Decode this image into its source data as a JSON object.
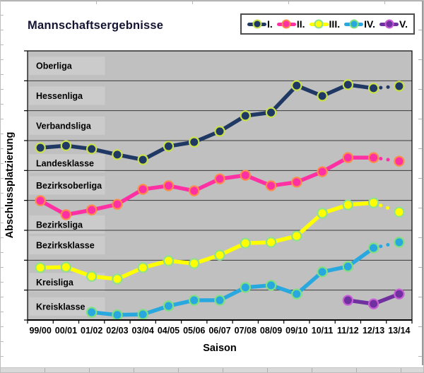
{
  "page": {
    "title": "Mannschaftsergebnisse",
    "x_axis_title": "Saison",
    "y_axis_title": "Abschlussplatzierung"
  },
  "legend": {
    "position": "top-right",
    "entries": [
      {
        "label": "I.",
        "color": "#1F3864",
        "marker_outline": "#C9E04B"
      },
      {
        "label": "II.",
        "color": "#FF2FA4",
        "marker_outline": "#FF8A4A"
      },
      {
        "label": "III.",
        "color": "#FFFF00",
        "marker_outline": "#8FE08F"
      },
      {
        "label": "IV.",
        "color": "#29A8E0",
        "marker_outline": "#7EE07E"
      },
      {
        "label": "V.",
        "color": "#7030A0",
        "marker_outline": "#C95FD6"
      }
    ]
  },
  "chart_data": {
    "type": "line",
    "title": "Mannschaftsergebnisse",
    "xlabel": "Saison",
    "ylabel": "Abschlussplatzierung",
    "categories": [
      "99/00",
      "00/01",
      "01/02",
      "02/03",
      "03/04",
      "04/05",
      "05/06",
      "06/07",
      "07/08",
      "08/09",
      "09/10",
      "10/11",
      "11/12",
      "12/13",
      "13/14"
    ],
    "league_bands": [
      "Oberliga",
      "Hessenliga",
      "Verbandsliga",
      "Landesklasse",
      "Bezirksoberliga",
      "Bezirksliga",
      "Bezirksklasse",
      "Kreisliga",
      "Kreisklasse"
    ],
    "values_unit": "league position from top: value v lies in band number floor(v)+1 (0 = top of Oberliga, 9 = bottom of Kreisklasse); lower = better placement",
    "plot_bg": "#C0C0C0",
    "grid": true,
    "grid_color": "#3a3a3a",
    "legend_position": "top-right",
    "series": [
      {
        "name": "I.",
        "color": "#1F3864",
        "marker_outline": "#C9E04B",
        "start_index": 0,
        "values": [
          3.24,
          3.17,
          3.28,
          3.47,
          3.64,
          3.19,
          3.05,
          2.69,
          2.17,
          2.06,
          1.16,
          1.51,
          1.13,
          1.25,
          1.18
        ],
        "dotted_last_segment": true
      },
      {
        "name": "II.",
        "color": "#FF2FA4",
        "marker_outline": "#FF8A4A",
        "start_index": 0,
        "values": [
          5.01,
          5.48,
          5.32,
          5.13,
          4.63,
          4.51,
          4.68,
          4.28,
          4.16,
          4.51,
          4.39,
          4.04,
          3.57,
          3.57,
          3.69
        ],
        "dotted_last_segment": true
      },
      {
        "name": "III.",
        "color": "#FFFF00",
        "marker_outline": "#8FE08F",
        "start_index": 0,
        "values": [
          7.25,
          7.23,
          7.54,
          7.63,
          7.25,
          7.02,
          7.11,
          6.83,
          6.43,
          6.4,
          6.19,
          5.43,
          5.15,
          5.08,
          5.39
        ],
        "dotted_last_segment": true
      },
      {
        "name": "IV.",
        "color": "#29A8E0",
        "marker_outline": "#7EE07E",
        "start_index": 2,
        "values": [
          8.74,
          8.83,
          8.81,
          8.53,
          8.34,
          8.34,
          7.91,
          7.84,
          8.13,
          7.39,
          7.21,
          6.59,
          6.4
        ],
        "dotted_last_segment": true
      },
      {
        "name": "V.",
        "color": "#7030A0",
        "marker_outline": "#C95FD6",
        "start_index": 12,
        "values": [
          8.34,
          8.46,
          8.13
        ],
        "dotted_last_segment": false
      }
    ]
  }
}
